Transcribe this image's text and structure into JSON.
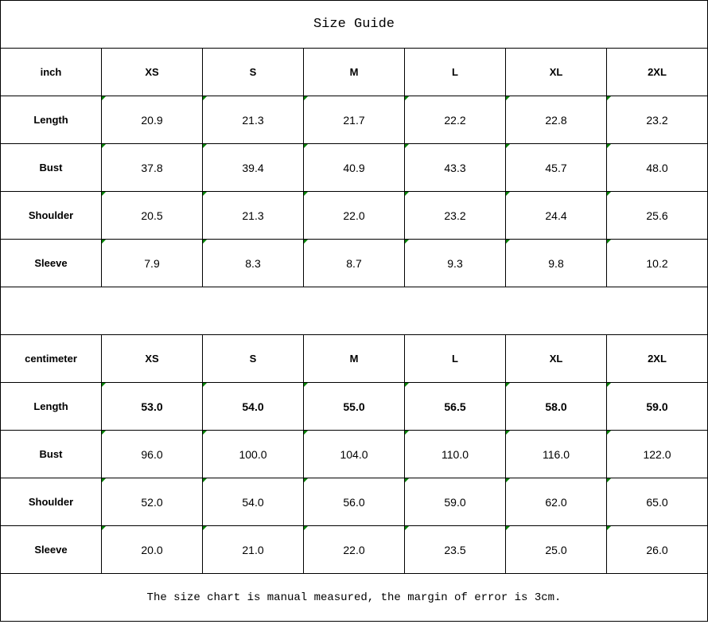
{
  "title": "Size Guide",
  "sizes": [
    "XS",
    "S",
    "M",
    "L",
    "XL",
    "2XL"
  ],
  "tables": [
    {
      "unit": "inch",
      "bold_rows": [],
      "rows": [
        {
          "label": "Length",
          "values": [
            "20.9",
            "21.3",
            "21.7",
            "22.2",
            "22.8",
            "23.2"
          ]
        },
        {
          "label": "Bust",
          "values": [
            "37.8",
            "39.4",
            "40.9",
            "43.3",
            "45.7",
            "48.0"
          ]
        },
        {
          "label": "Shoulder",
          "values": [
            "20.5",
            "21.3",
            "22.0",
            "23.2",
            "24.4",
            "25.6"
          ]
        },
        {
          "label": "Sleeve",
          "values": [
            "7.9",
            "8.3",
            "8.7",
            "9.3",
            "9.8",
            "10.2"
          ]
        }
      ]
    },
    {
      "unit": "centimeter",
      "bold_rows": [
        "Length"
      ],
      "rows": [
        {
          "label": "Length",
          "values": [
            "53.0",
            "54.0",
            "55.0",
            "56.5",
            "58.0",
            "59.0"
          ]
        },
        {
          "label": "Bust",
          "values": [
            "96.0",
            "100.0",
            "104.0",
            "110.0",
            "116.0",
            "122.0"
          ]
        },
        {
          "label": "Shoulder",
          "values": [
            "52.0",
            "54.0",
            "56.0",
            "59.0",
            "62.0",
            "65.0"
          ]
        },
        {
          "label": "Sleeve",
          "values": [
            "20.0",
            "21.0",
            "22.0",
            "23.5",
            "25.0",
            "26.0"
          ]
        }
      ]
    }
  ],
  "note": "The size chart is manual measured, the margin of error is 3cm.",
  "colors": {
    "number_marker": "#008000",
    "border": "#000000"
  }
}
